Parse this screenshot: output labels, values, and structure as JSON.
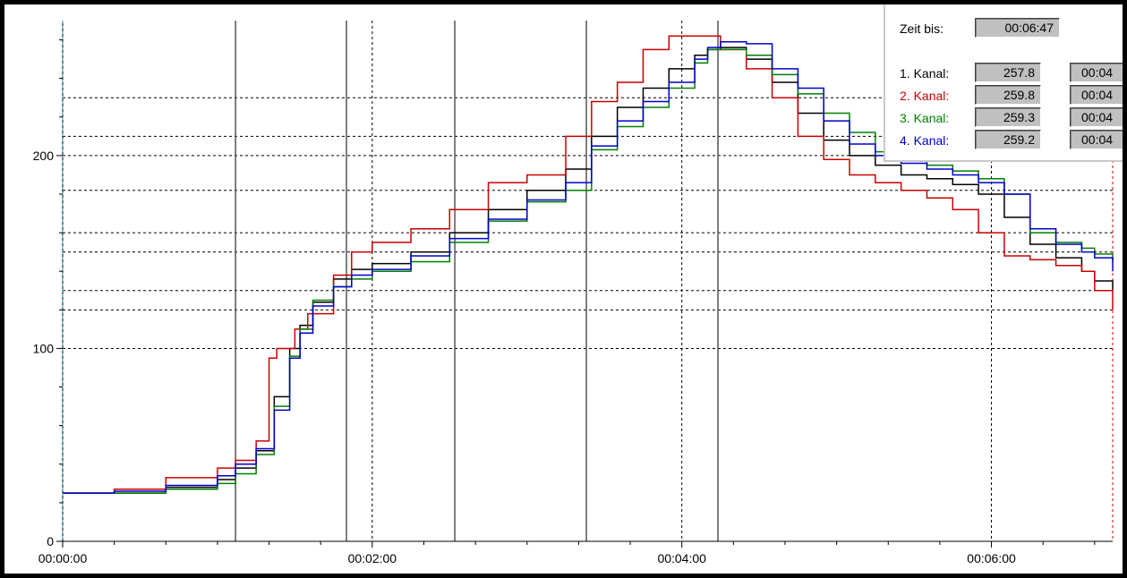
{
  "window": {
    "zeit_bis_label": "Zeit bis:",
    "zeit_bis_value": "00:06:47"
  },
  "channels": [
    {
      "label": "1. Kanal:",
      "value": "257.8",
      "time": "00:04",
      "color": "#000000"
    },
    {
      "label": "2. Kanal:",
      "value": "259.8",
      "time": "00:04",
      "color": "#cc0000"
    },
    {
      "label": "3. Kanal:",
      "value": "259.3",
      "time": "00:04",
      "color": "#008000"
    },
    {
      "label": "4. Kanal:",
      "value": "259.2",
      "time": "00:04",
      "color": "#0000cc"
    }
  ],
  "chart_data": {
    "type": "line",
    "x_unit": "seconds",
    "xlim": [
      0,
      407
    ],
    "ylim": [
      0,
      270
    ],
    "x_ticks": [
      {
        "value": 0,
        "label": "00:00:00"
      },
      {
        "value": 120,
        "label": "00:02:00"
      },
      {
        "value": 240,
        "label": "00:04:00"
      },
      {
        "value": 360,
        "label": "00:06:00"
      }
    ],
    "y_ticks": [
      {
        "value": 0,
        "label": "0"
      },
      {
        "value": 100,
        "label": "100"
      },
      {
        "value": 200,
        "label": "200"
      }
    ],
    "y_grid_dashed": [
      100,
      120,
      130,
      150,
      160,
      182,
      200,
      210,
      230
    ],
    "x_grid_dashed": [
      120,
      240,
      360
    ],
    "x_markers_solid": [
      67,
      110,
      152,
      203,
      254
    ],
    "series": [
      {
        "color": "#000000",
        "x": [
          0,
          20,
          40,
          60,
          67,
          75,
          82,
          88,
          92,
          97,
          105,
          112,
          120,
          135,
          150,
          165,
          180,
          195,
          205,
          215,
          225,
          235,
          245,
          250,
          255,
          265,
          275,
          285,
          295,
          305,
          315,
          325,
          335,
          345,
          355,
          365,
          375,
          385,
          395,
          400,
          407
        ],
        "y": [
          25,
          25,
          28,
          32,
          38,
          47,
          75,
          100,
          112,
          124,
          136,
          141,
          144,
          150,
          160,
          172,
          182,
          193,
          210,
          225,
          235,
          245,
          252,
          255,
          256,
          250,
          238,
          222,
          208,
          200,
          195,
          190,
          188,
          185,
          180,
          168,
          154,
          147,
          140,
          135,
          130
        ]
      },
      {
        "color": "#cc0000",
        "x": [
          0,
          20,
          40,
          60,
          67,
          75,
          80,
          83,
          90,
          95,
          105,
          112,
          120,
          135,
          150,
          165,
          180,
          195,
          205,
          215,
          225,
          235,
          240,
          245,
          255,
          265,
          275,
          285,
          295,
          305,
          315,
          325,
          335,
          345,
          355,
          365,
          375,
          385,
          395,
          400,
          407
        ],
        "y": [
          25,
          27,
          33,
          38,
          42,
          52,
          95,
          100,
          110,
          118,
          138,
          150,
          155,
          162,
          172,
          186,
          190,
          210,
          228,
          238,
          255,
          262,
          262,
          262,
          255,
          245,
          230,
          210,
          198,
          190,
          186,
          182,
          178,
          172,
          160,
          148,
          146,
          143,
          140,
          130,
          120
        ]
      },
      {
        "color": "#008000",
        "x": [
          0,
          20,
          40,
          60,
          67,
          75,
          82,
          88,
          92,
          97,
          105,
          112,
          120,
          135,
          150,
          165,
          180,
          195,
          205,
          215,
          225,
          235,
          245,
          250,
          255,
          265,
          275,
          285,
          295,
          305,
          315,
          325,
          335,
          345,
          355,
          365,
          375,
          385,
          395,
          400,
          407
        ],
        "y": [
          25,
          25,
          27,
          30,
          35,
          45,
          70,
          96,
          110,
          125,
          132,
          136,
          140,
          145,
          155,
          166,
          176,
          182,
          203,
          215,
          225,
          235,
          248,
          255,
          255,
          252,
          242,
          232,
          222,
          212,
          202,
          198,
          195,
          192,
          188,
          180,
          160,
          155,
          152,
          149,
          145
        ]
      },
      {
        "color": "#0000cc",
        "x": [
          0,
          20,
          40,
          60,
          67,
          75,
          82,
          88,
          92,
          97,
          105,
          112,
          120,
          135,
          150,
          165,
          180,
          195,
          205,
          215,
          225,
          235,
          245,
          250,
          255,
          265,
          275,
          285,
          295,
          305,
          315,
          325,
          335,
          345,
          355,
          365,
          375,
          385,
          395,
          400,
          407
        ],
        "y": [
          25,
          26,
          29,
          34,
          40,
          48,
          68,
          95,
          108,
          122,
          132,
          138,
          141,
          148,
          157,
          167,
          177,
          186,
          205,
          218,
          228,
          238,
          250,
          256,
          259,
          258,
          245,
          235,
          218,
          206,
          200,
          196,
          193,
          190,
          186,
          180,
          162,
          154,
          150,
          147,
          140
        ]
      }
    ]
  }
}
